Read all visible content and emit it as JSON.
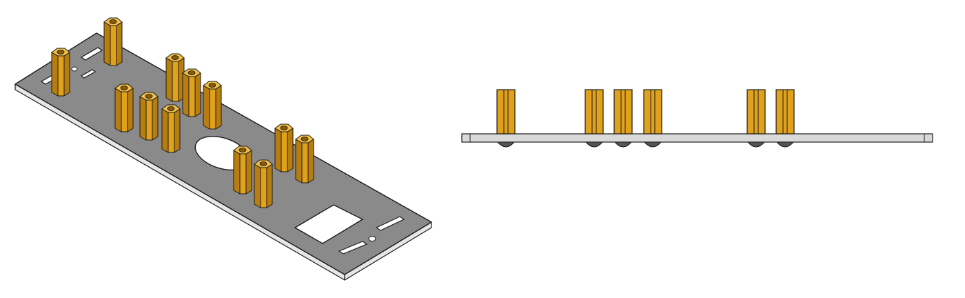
{
  "colors": {
    "plate_top": "#8a8a8a",
    "plate_edge": "#e6e6e6",
    "outline": "#1a1a1a",
    "standoff_front": "#e0a21c",
    "standoff_side": "#b87d10",
    "standoff_top": "#f1c04a",
    "standoff_hole": "#8a5a05",
    "side_plate": "#d9d9d9",
    "side_plate_light": "#ececec",
    "screw": "#555555",
    "background": "#ffffff"
  },
  "views": {
    "isometric": {
      "standoff_count": 12,
      "cutouts": [
        "round-hole",
        "square-window",
        "slots"
      ]
    },
    "side": {
      "standoff_count": 6
    }
  }
}
